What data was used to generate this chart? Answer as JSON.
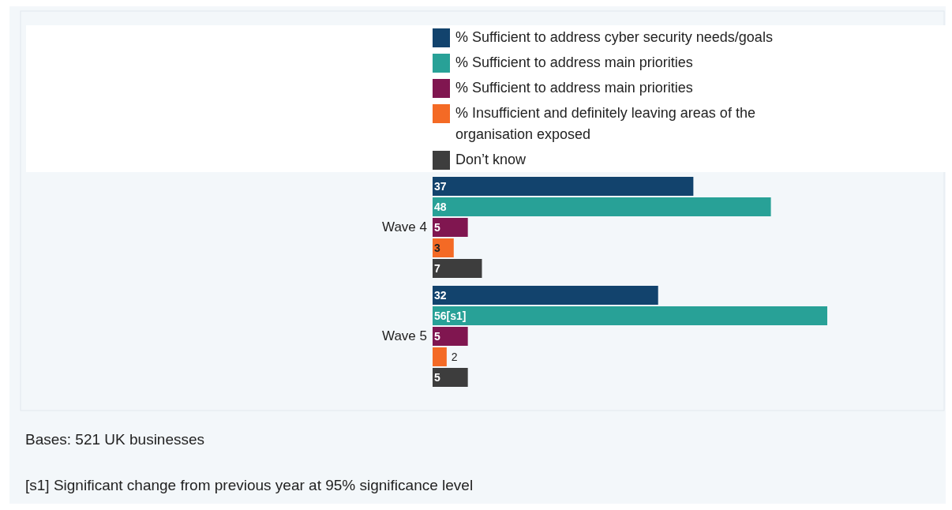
{
  "chart_data": {
    "type": "bar",
    "orientation": "horizontal",
    "categories": [
      "Wave 4",
      "Wave 5"
    ],
    "series": [
      {
        "name": "% Sufficient to address cyber security needs/goals",
        "color": "#12436d",
        "values": [
          37,
          32
        ],
        "value_labels": [
          "37",
          "32"
        ]
      },
      {
        "name": "% Sufficient to address main priorities",
        "color": "#28a197",
        "values": [
          48,
          56
        ],
        "value_labels": [
          "48",
          "56[s1]"
        ]
      },
      {
        "name": "% Sufficient to address main priorities",
        "color": "#801650",
        "values": [
          5,
          5
        ],
        "value_labels": [
          "5",
          "5"
        ]
      },
      {
        "name": "% Insufficient and definitely leaving areas of the organisation exposed",
        "color": "#f46a25",
        "values": [
          3,
          2
        ],
        "value_labels": [
          "3",
          "2"
        ]
      },
      {
        "name": "Don’t know",
        "color": "#3d3d3d",
        "values": [
          7,
          5
        ],
        "value_labels": [
          "7",
          "5"
        ]
      }
    ],
    "data_labels": true,
    "legend": "top",
    "annotations": [
      "Bases: 521 UK businesses",
      "[s1] Significant change from previous year at 95% significance level"
    ]
  }
}
